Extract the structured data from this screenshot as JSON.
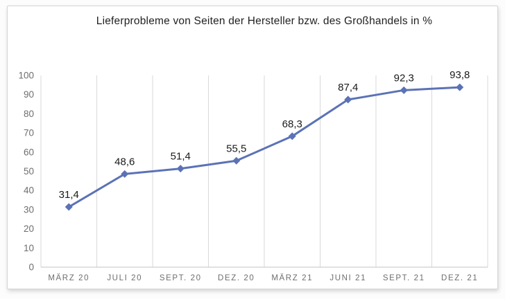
{
  "chart_data": {
    "type": "line",
    "title": "Lieferprobleme von Seiten der Hersteller bzw. des Großhandels in %",
    "categories": [
      "MÄRZ 20",
      "JULI 20",
      "SEPT. 20",
      "DEZ. 20",
      "MÄRZ 21",
      "JUNI 21",
      "SEPT. 21",
      "DEZ. 21"
    ],
    "series": [
      {
        "name": "Lieferprobleme in %",
        "values": [
          31.4,
          48.6,
          51.4,
          55.5,
          68.3,
          87.4,
          92.3,
          93.8
        ]
      }
    ],
    "data_labels": [
      "31,4",
      "48,6",
      "51,4",
      "55,5",
      "68,3",
      "87,4",
      "92,3",
      "93,8"
    ],
    "ylim": [
      0,
      100
    ],
    "y_ticks": [
      0,
      10,
      20,
      30,
      40,
      50,
      60,
      70,
      80,
      90,
      100
    ],
    "grid": "vertical-only",
    "legend": "none",
    "marker": "diamond",
    "colors": {
      "line": "#5B72B6",
      "marker": "#5B72B6",
      "gridline": "#D9D9D9",
      "axis_line": "#C3C3C3",
      "tick_label": "#6E6E6E",
      "data_label": "#1A1A1A",
      "title": "#1F1F1F"
    }
  }
}
